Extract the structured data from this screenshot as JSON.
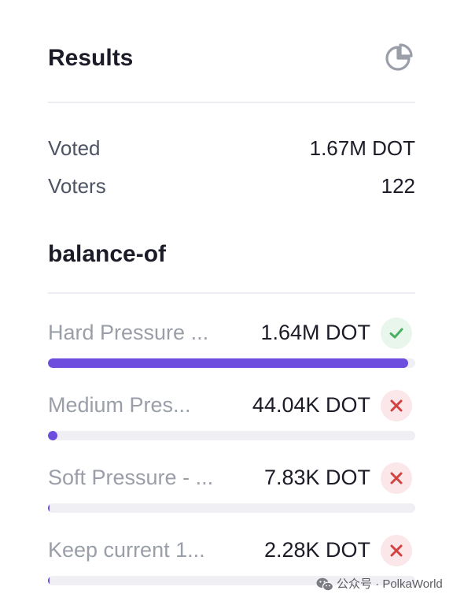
{
  "results": {
    "title": "Results",
    "icon": "pie-chart-icon"
  },
  "stats": [
    {
      "label": "Voted",
      "value": "1.67M DOT"
    },
    {
      "label": "Voters",
      "value": "122"
    }
  ],
  "section": {
    "title": "balance-of"
  },
  "options": [
    {
      "label": "Hard Pressure ...",
      "value": "1.64M DOT",
      "status": "pass",
      "status_icon": "check-icon",
      "share": 0.98
    },
    {
      "label": "Medium Pres...",
      "value": "44.04K DOT",
      "status": "fail",
      "status_icon": "cross-icon",
      "share": 0.026
    },
    {
      "label": "Soft Pressure - ...",
      "value": "7.83K DOT",
      "status": "fail",
      "status_icon": "cross-icon",
      "share": 0.005
    },
    {
      "label": "Keep current 1...",
      "value": "2.28K DOT",
      "status": "fail",
      "status_icon": "cross-icon",
      "share": 0.0014
    }
  ],
  "colors": {
    "accent": "#6c4dde",
    "pass": "#4caf60",
    "fail": "#d14343"
  },
  "watermark": {
    "text": "公众号 · PolkaWorld",
    "icon": "wechat-icon"
  }
}
